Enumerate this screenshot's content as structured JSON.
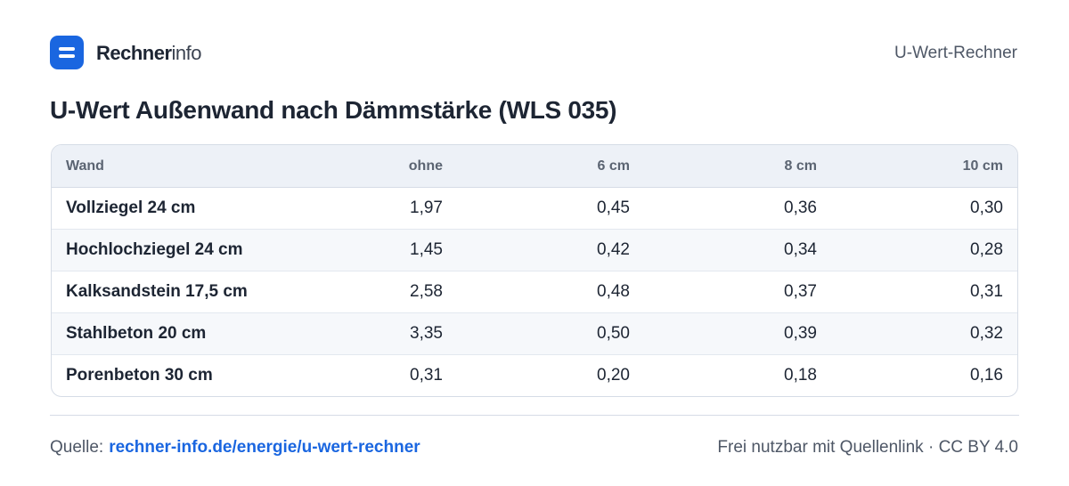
{
  "header": {
    "brand_bold": "Rechner",
    "brand_light": "info",
    "tool": "U-Wert-Rechner"
  },
  "title": "U-Wert Außenwand nach Dämmstärke (WLS 035)",
  "table": {
    "columns": [
      "Wand",
      "ohne",
      "6 cm",
      "8 cm",
      "10 cm"
    ],
    "rows": [
      [
        "Vollziegel 24 cm",
        "1,97",
        "0,45",
        "0,36",
        "0,30"
      ],
      [
        "Hochlochziegel 24 cm",
        "1,45",
        "0,42",
        "0,34",
        "0,28"
      ],
      [
        "Kalksandstein 17,5 cm",
        "2,58",
        "0,48",
        "0,37",
        "0,31"
      ],
      [
        "Stahlbeton 20 cm",
        "3,35",
        "0,50",
        "0,39",
        "0,32"
      ],
      [
        "Porenbeton 30 cm",
        "0,31",
        "0,20",
        "0,18",
        "0,16"
      ]
    ]
  },
  "footer": {
    "source_label": "Quelle:",
    "source_link": "rechner-info.de/energie/u-wert-rechner",
    "license_text": "Frei nutzbar mit Quellenlink",
    "separator": "·",
    "license": "CC BY 4.0"
  }
}
